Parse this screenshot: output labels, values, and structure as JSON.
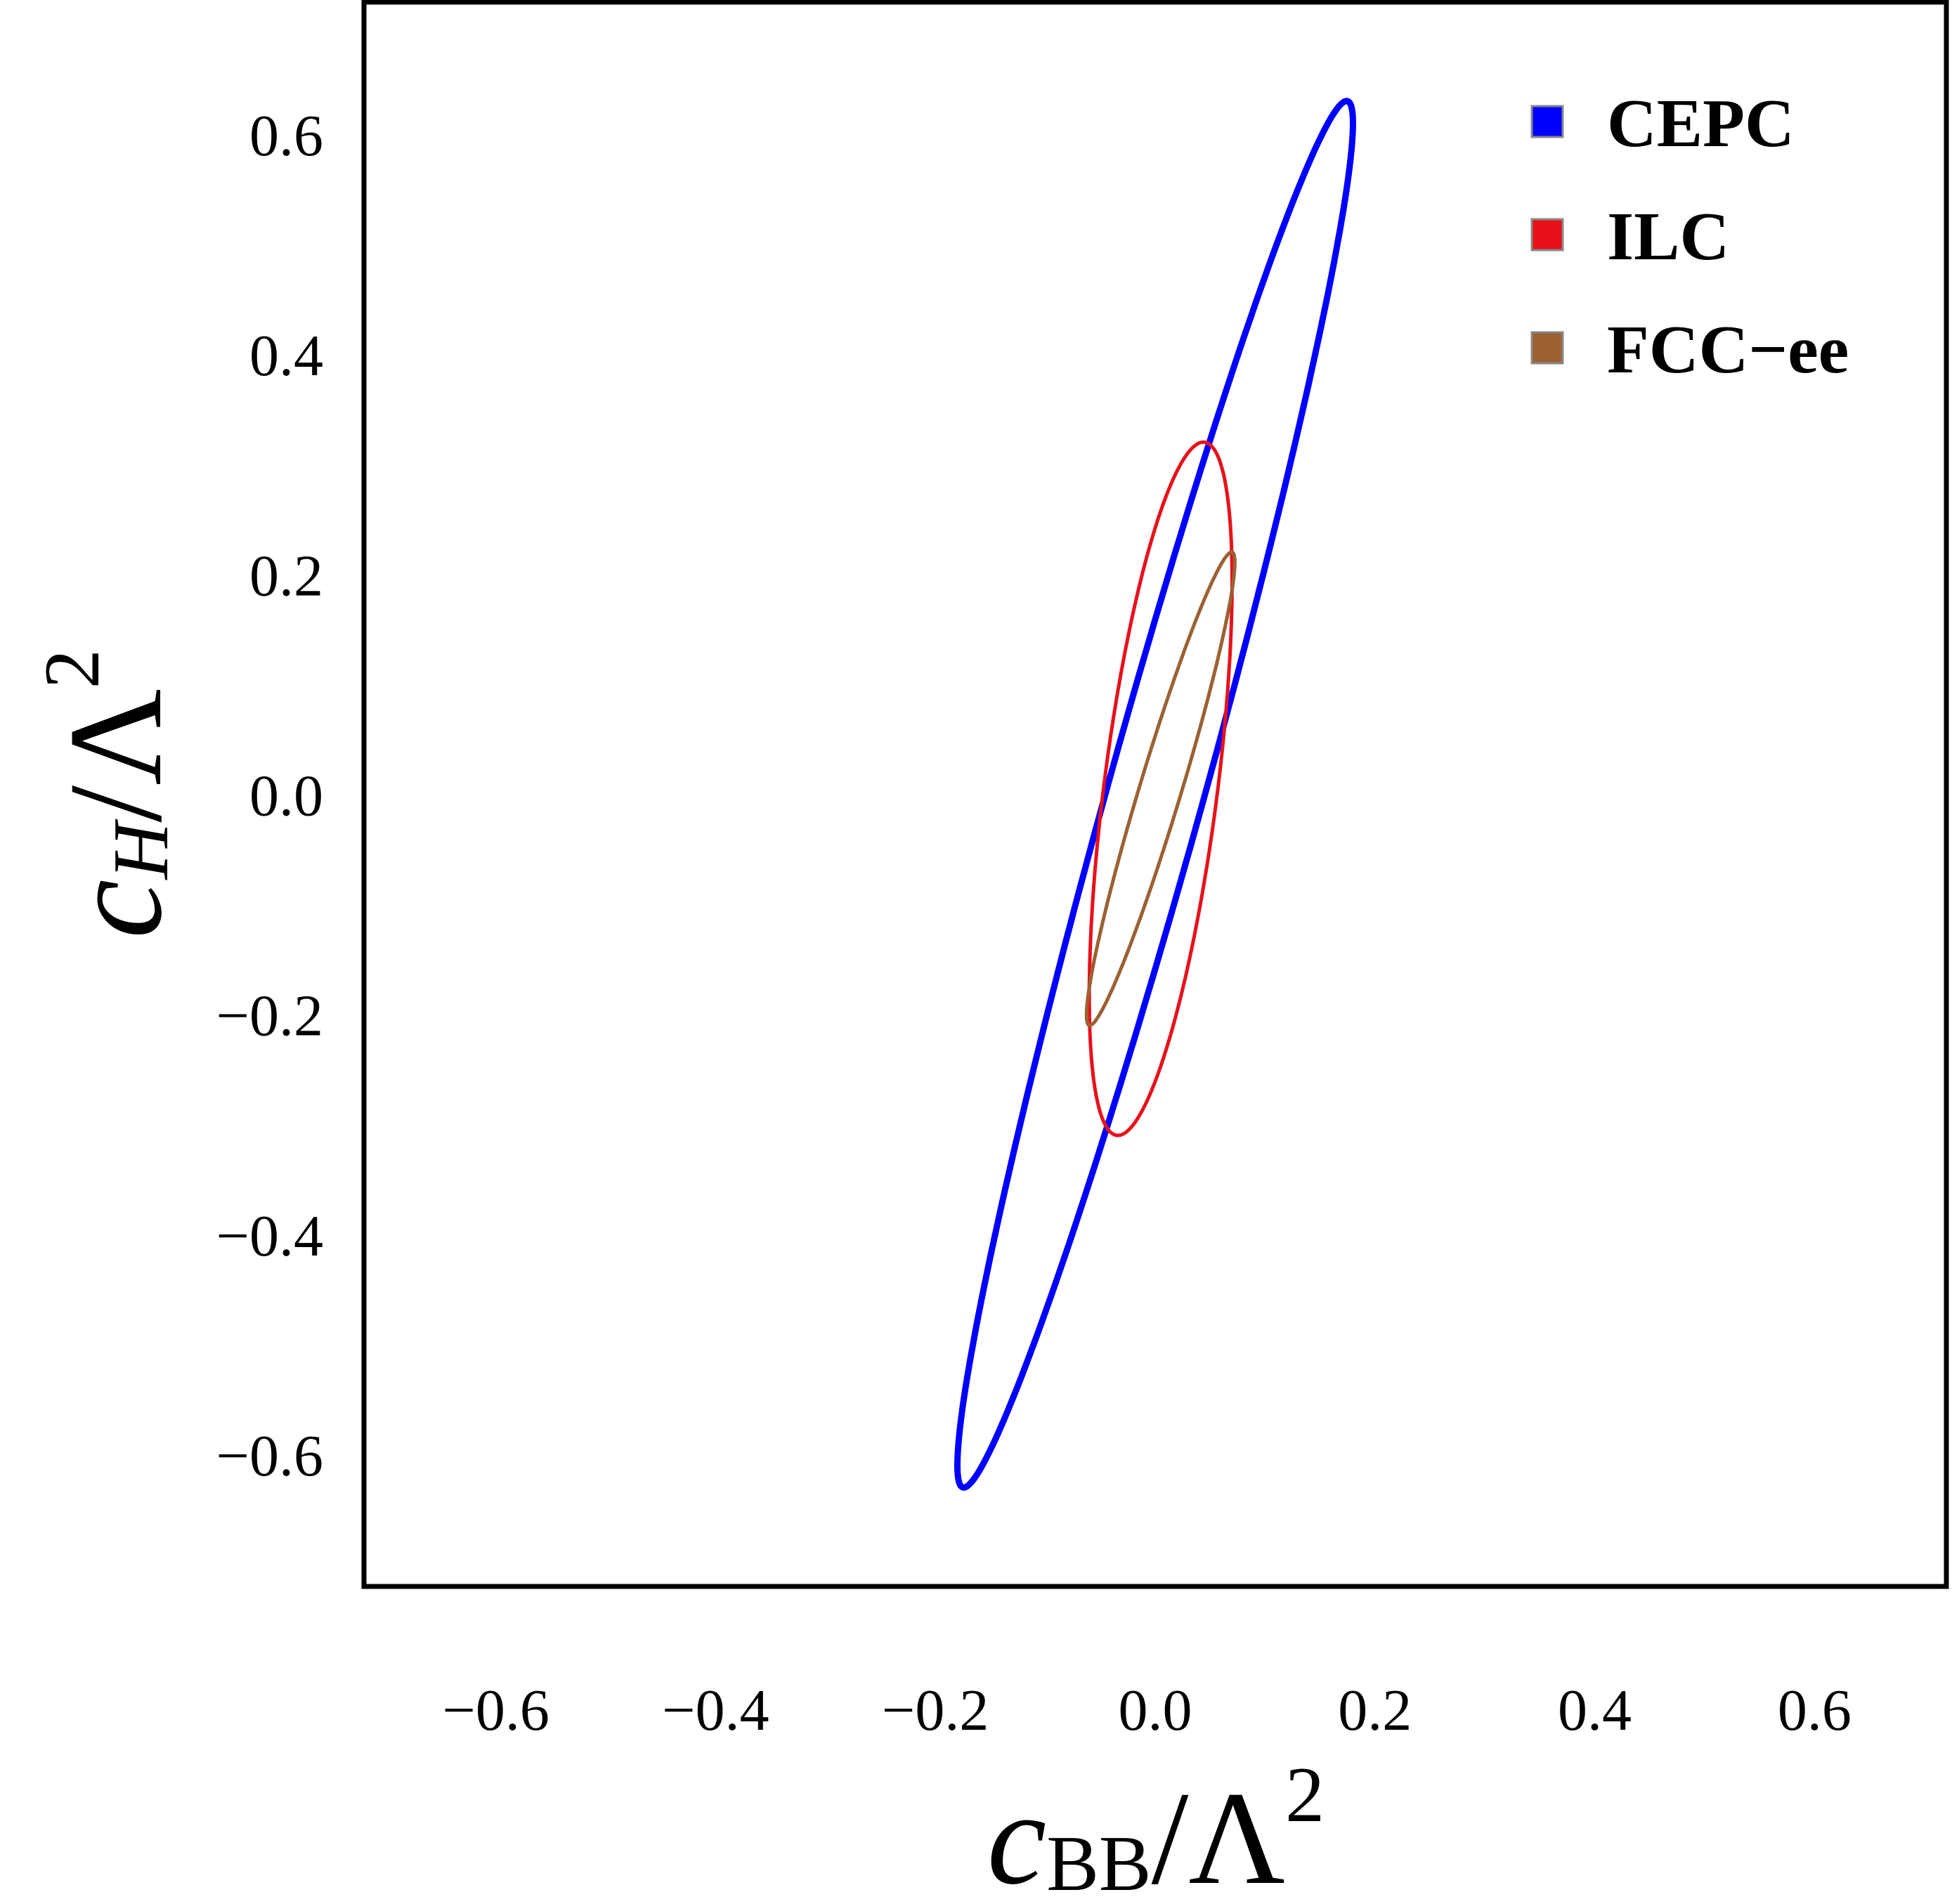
{
  "chart_data": {
    "type": "contour",
    "xlabel": {
      "base": "c",
      "sub": "BB",
      "rest": "/Λ",
      "sup": "2"
    },
    "ylabel": {
      "base": "c",
      "sub": "H",
      "rest": "/Λ",
      "sup": "2"
    },
    "xlim": [
      -0.72,
      0.72
    ],
    "ylim": [
      -0.72,
      0.72
    ],
    "xticks": [
      -0.6,
      -0.4,
      -0.2,
      0.0,
      0.2,
      0.4,
      0.6
    ],
    "xtick_labels": [
      "−0.6",
      "−0.4",
      "−0.2",
      "0.0",
      "0.2",
      "0.4",
      "0.6"
    ],
    "yticks": [
      -0.6,
      -0.4,
      -0.2,
      0.0,
      0.2,
      0.4,
      0.6
    ],
    "ytick_labels": [
      "−0.6",
      "−0.4",
      "−0.2",
      "0.0",
      "0.2",
      "0.4",
      "0.6"
    ],
    "legend_position": "top-right",
    "series": [
      {
        "name": "CEPC",
        "color": "#0000ff",
        "shape": "ellipse",
        "center": [
          0.0,
          0.0
        ],
        "tips": [
          [
            0.175,
            0.63
          ],
          [
            -0.175,
            -0.63
          ]
        ],
        "x_extent": [
          -0.18,
          0.18
        ],
        "y_extent": [
          -0.65,
          0.65
        ]
      },
      {
        "name": "ILC",
        "color": "#e8111a",
        "shape": "ellipse",
        "center": [
          0.005,
          0.005
        ],
        "tips": [
          [
            0.045,
            0.32
          ],
          [
            -0.035,
            -0.31
          ]
        ],
        "x_extent": [
          -0.06,
          0.07
        ],
        "y_extent": [
          -0.31,
          0.32
        ]
      },
      {
        "name": "FCC−ee",
        "color": "#9b6133",
        "shape": "ellipse",
        "center": [
          0.0,
          0.0
        ],
        "tips": [
          [
            0.07,
            0.22
          ],
          [
            -0.06,
            -0.21
          ]
        ],
        "x_extent": [
          -0.06,
          0.075
        ],
        "y_extent": [
          -0.21,
          0.225
        ]
      }
    ]
  }
}
